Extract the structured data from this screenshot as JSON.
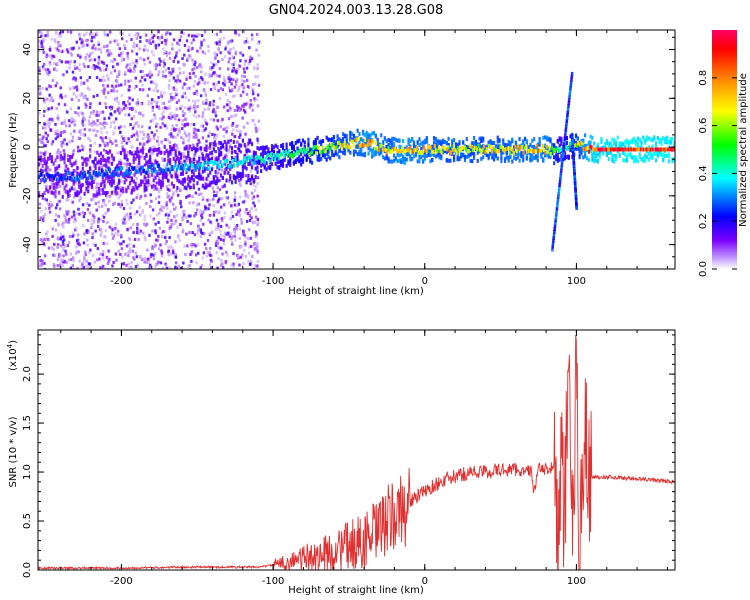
{
  "title": "GN04.2024.003.13.28.G08",
  "chart_data": [
    {
      "type": "heatmap",
      "title": "GN04.2024.003.13.28.G08",
      "xlabel": "Height of straight line (km)",
      "ylabel": "Frequency (Hz)",
      "xlim": [
        -255,
        165
      ],
      "ylim": [
        -50,
        48
      ],
      "xticks": [
        -200,
        -100,
        0,
        100
      ],
      "xtick_labels": [
        "-200",
        "-100",
        "0",
        "100"
      ],
      "yticks": [
        -40,
        -20,
        0,
        20,
        40
      ],
      "ytick_labels": [
        "-40",
        "-20",
        "0",
        "20",
        "40"
      ],
      "colorbar": {
        "label": "Normalized spectral amplitude",
        "range": [
          0.0,
          1.0
        ],
        "ticks": [
          0.0,
          0.2,
          0.4,
          0.6,
          0.8
        ],
        "tick_labels": [
          "0.0",
          "0.2",
          "0.4",
          "0.6",
          "0.8"
        ],
        "colors": [
          "#ffffff",
          "#7b00ff",
          "#0000ff",
          "#00ffff",
          "#00ff00",
          "#ffff00",
          "#ff8000",
          "#ff0000",
          "#ff0066"
        ]
      },
      "track": {
        "x": [
          -255,
          -230,
          -200,
          -180,
          -150,
          -120,
          -100,
          -80,
          -60,
          -45,
          -35,
          -25,
          -15,
          0,
          20,
          40,
          60,
          80,
          85,
          90,
          95,
          100,
          110,
          130,
          165
        ],
        "y": [
          -12,
          -12,
          -10,
          -9,
          -8,
          -6,
          -4,
          -2,
          0,
          2,
          1,
          -1,
          -2,
          -1,
          -1,
          -1,
          -1,
          -1,
          -2,
          -1,
          0,
          1,
          -1,
          -1,
          -1
        ],
        "amplitude": [
          0.25,
          0.3,
          0.3,
          0.3,
          0.35,
          0.4,
          0.45,
          0.55,
          0.65,
          0.75,
          0.8,
          0.7,
          0.8,
          0.75,
          0.7,
          0.7,
          0.75,
          0.8,
          0.6,
          0.4,
          0.5,
          0.7,
          0.95,
          1.0,
          1.0
        ]
      },
      "secondary_lines": [
        {
          "x": [
            84,
            97
          ],
          "y": [
            -42,
            30
          ]
        },
        {
          "x": [
            97,
            100
          ],
          "y": [
            5,
            -25
          ]
        }
      ],
      "grid": false
    },
    {
      "type": "line",
      "xlabel": "Height of straight line (km)",
      "ylabel": "SNR (10 * v/v)",
      "yscale_label": "(x10",
      "yscale_exponent": "4",
      "xlim": [
        -255,
        165
      ],
      "ylim": [
        0,
        2.45
      ],
      "xticks": [
        -200,
        -100,
        0,
        100
      ],
      "xtick_labels": [
        "-200",
        "-100",
        "0",
        "100"
      ],
      "yticks": [
        0.0,
        0.5,
        1.0,
        1.5,
        2.0
      ],
      "ytick_labels": [
        "0.0",
        "0.5",
        "1.0",
        "1.5",
        "2.0"
      ],
      "color": "#e03030",
      "series": [
        {
          "x": [
            -255,
            -200,
            -150,
            -110,
            -100,
            -90,
            -80,
            -70,
            -60,
            -50,
            -40,
            -30,
            -25,
            -20,
            -15,
            -10,
            0,
            10,
            20,
            30,
            40,
            50,
            60,
            65,
            70,
            72,
            75,
            80,
            85,
            88,
            90,
            92,
            95,
            98,
            100,
            102,
            105,
            108,
            110,
            120,
            140,
            165
          ],
          "y": [
            0.02,
            0.02,
            0.03,
            0.03,
            0.05,
            0.08,
            0.12,
            0.15,
            0.18,
            0.25,
            0.3,
            0.4,
            0.5,
            0.55,
            0.6,
            0.7,
            0.8,
            0.9,
            0.95,
            1.0,
            1.0,
            1.02,
            1.03,
            1.0,
            1.02,
            0.8,
            1.03,
            1.03,
            1.05,
            0.25,
            1.3,
            0.2,
            2.4,
            0.05,
            2.1,
            0.1,
            1.6,
            0.95,
            0.95,
            0.95,
            0.93,
            0.9
          ]
        }
      ],
      "grid": false
    }
  ]
}
